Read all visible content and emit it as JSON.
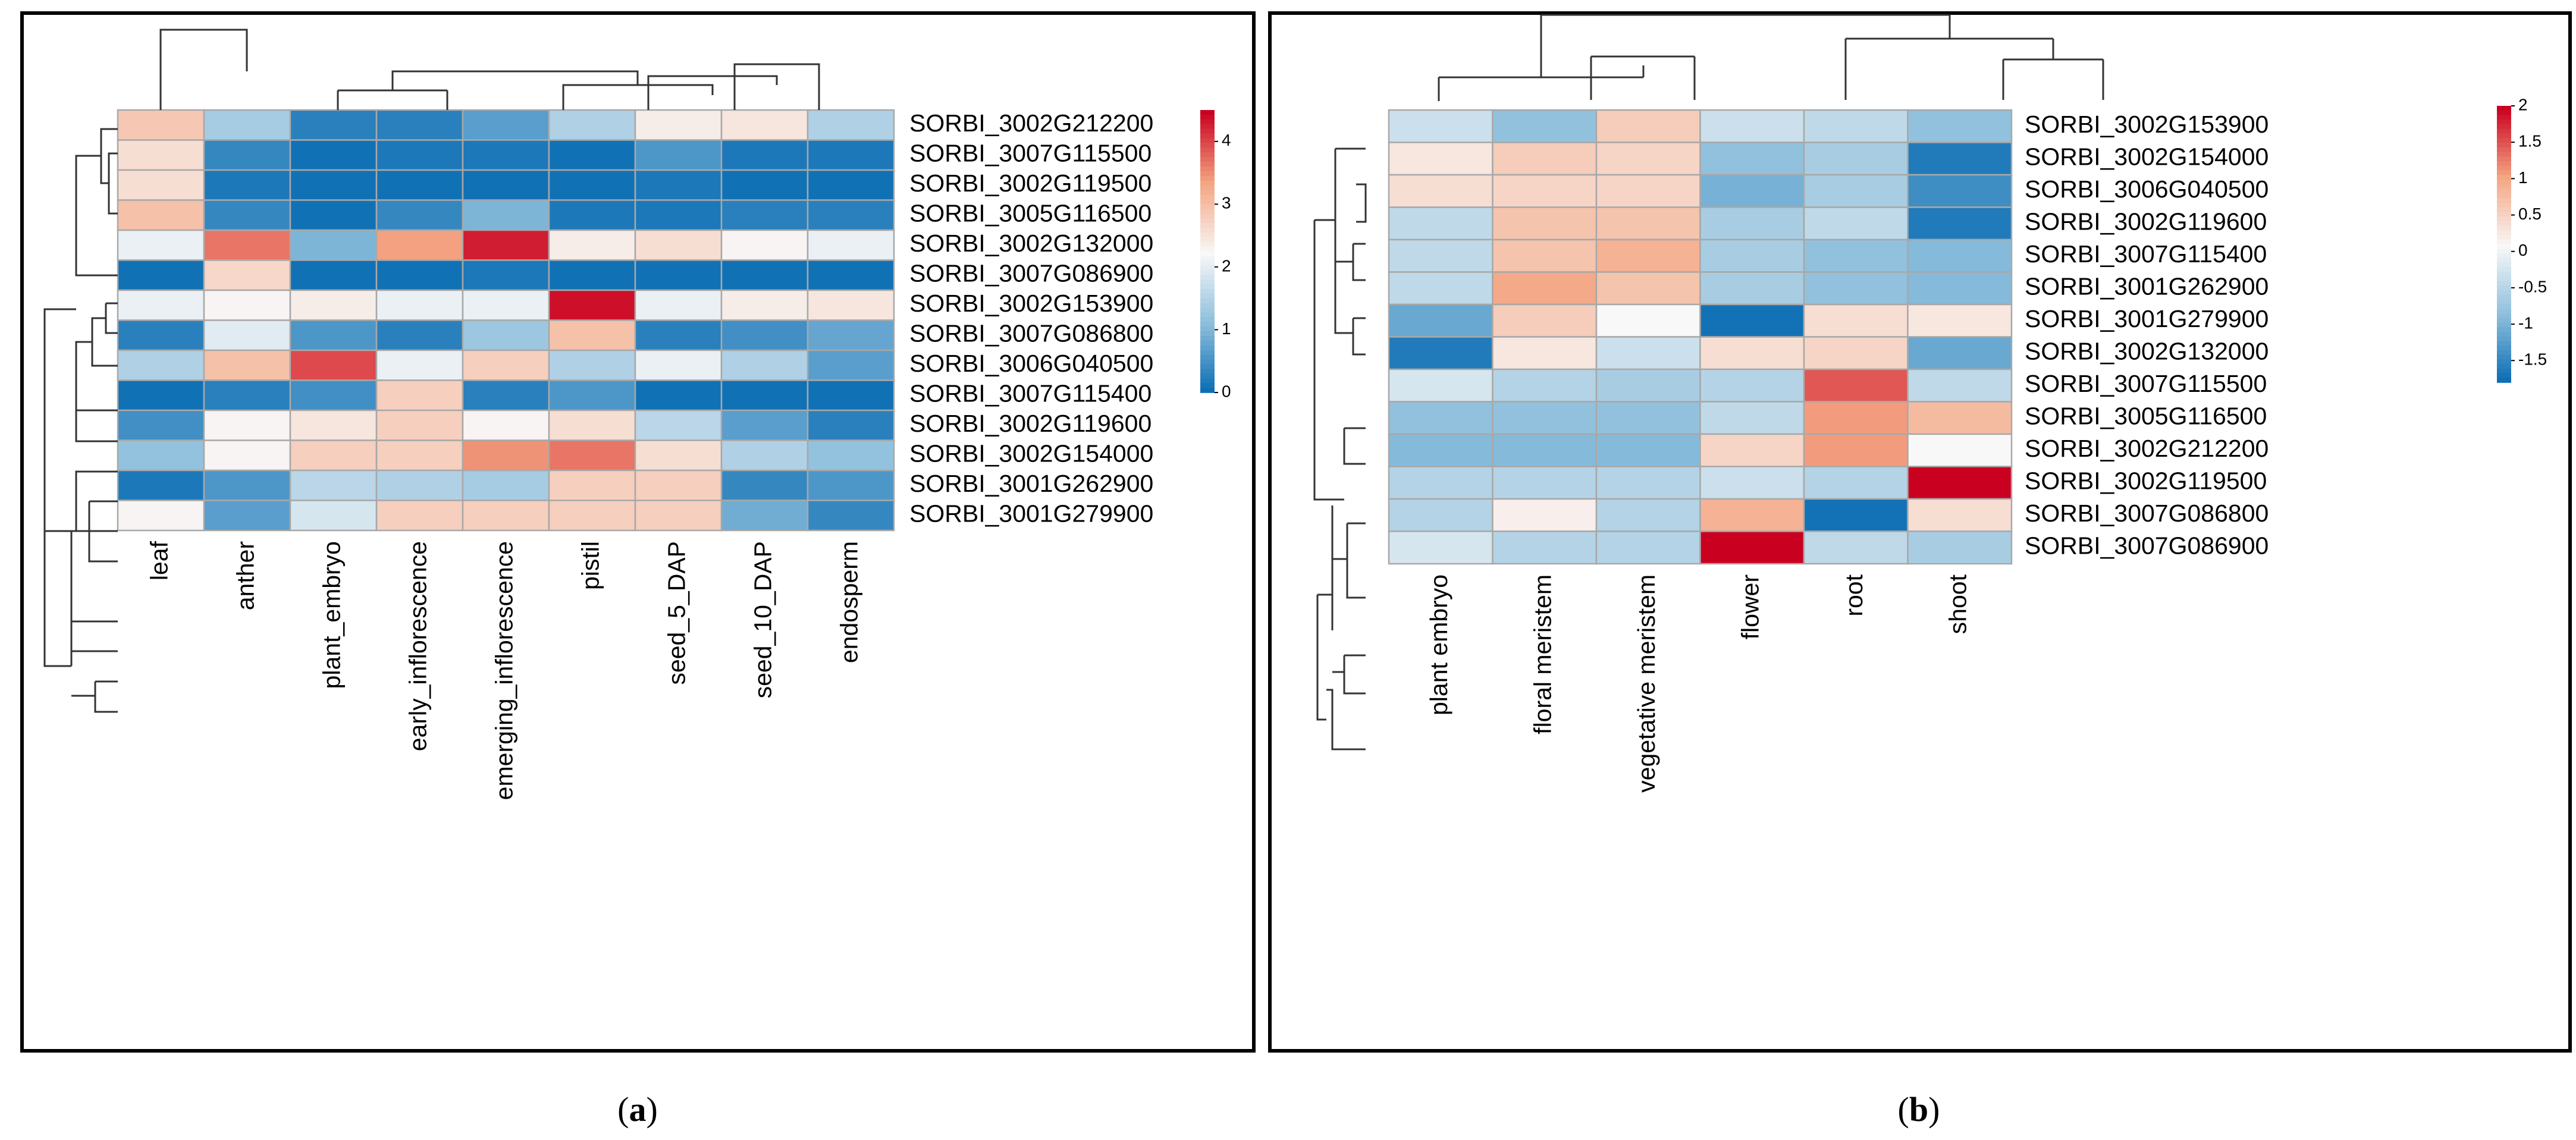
{
  "chart_data": [
    {
      "type": "heatmap",
      "panel": "a",
      "caption_open": "(",
      "caption_letter": "a",
      "caption_close": ")",
      "rows": [
        "SORBI_3002G212200",
        "SORBI_3007G115500",
        "SORBI_3002G119500",
        "SORBI_3005G116500",
        "SORBI_3002G132000",
        "SORBI_3007G086900",
        "SORBI_3002G153900",
        "SORBI_3007G086800",
        "SORBI_3006G040500",
        "SORBI_3007G115400",
        "SORBI_3002G119600",
        "SORBI_3002G154000",
        "SORBI_3001G262900",
        "SORBI_3001G279900"
      ],
      "columns": [
        "leaf",
        "anther",
        "plant_embryo",
        "early_inflorescence",
        "emerging_inflorescence",
        "pistil",
        "seed_5_DAP",
        "seed_10_DAP",
        "endosperm"
      ],
      "values": [
        [
          2.9,
          1.4,
          0.3,
          0.3,
          0.7,
          1.5,
          2.4,
          2.5,
          1.5
        ],
        [
          2.6,
          0.4,
          0.1,
          0.2,
          0.2,
          0.1,
          0.6,
          0.2,
          0.2
        ],
        [
          2.6,
          0.2,
          0.1,
          0.1,
          0.1,
          0.1,
          0.2,
          0.1,
          0.1
        ],
        [
          3.0,
          0.4,
          0.1,
          0.4,
          1.0,
          0.2,
          0.2,
          0.3,
          0.3
        ],
        [
          2.1,
          3.7,
          1.0,
          3.4,
          4.3,
          2.4,
          2.6,
          2.3,
          2.1
        ],
        [
          0.1,
          2.7,
          0.1,
          0.1,
          0.2,
          0.1,
          0.1,
          0.1,
          0.1
        ],
        [
          2.1,
          2.3,
          2.4,
          2.1,
          2.1,
          4.4,
          2.1,
          2.4,
          2.5
        ],
        [
          0.3,
          2.0,
          0.6,
          0.3,
          1.3,
          3.0,
          0.3,
          0.5,
          0.8
        ],
        [
          1.5,
          3.0,
          4.0,
          2.1,
          2.8,
          1.5,
          2.1,
          1.5,
          0.7
        ],
        [
          0.1,
          0.3,
          0.5,
          2.8,
          0.3,
          0.6,
          0.1,
          0.1,
          0.1
        ],
        [
          0.5,
          2.3,
          2.5,
          2.8,
          2.3,
          2.6,
          1.6,
          0.7,
          0.3
        ],
        [
          1.2,
          2.3,
          2.8,
          2.8,
          3.5,
          3.7,
          2.6,
          1.5,
          1.2
        ],
        [
          0.2,
          0.6,
          1.6,
          1.5,
          1.4,
          2.8,
          2.8,
          0.4,
          0.6
        ],
        [
          2.3,
          0.7,
          1.9,
          2.8,
          2.8,
          2.8,
          2.8,
          0.9,
          0.4
        ]
      ],
      "legend_ticks": [
        0,
        1,
        2,
        3,
        4
      ],
      "legend_range": [
        0,
        4.5
      ]
    },
    {
      "type": "heatmap",
      "panel": "b",
      "caption_open": "(",
      "caption_letter": "b",
      "caption_close": ")",
      "rows": [
        "SORBI_3002G153900",
        "SORBI_3002G154000",
        "SORBI_3006G040500",
        "SORBI_3002G119600",
        "SORBI_3007G115400",
        "SORBI_3001G262900",
        "SORBI_3001G279900",
        "SORBI_3002G132000",
        "SORBI_3007G115500",
        "SORBI_3005G116500",
        "SORBI_3002G212200",
        "SORBI_3002G119500",
        "SORBI_3007G086800",
        "SORBI_3007G086900"
      ],
      "columns": [
        "plant embryo",
        "floral meristem",
        "vegetative meristem",
        "flower",
        "root",
        "shoot"
      ],
      "values": [
        [
          -0.3,
          -0.8,
          0.6,
          -0.3,
          -0.4,
          -0.8
        ],
        [
          0.3,
          0.6,
          0.5,
          -0.8,
          -0.6,
          -1.6
        ],
        [
          0.4,
          0.5,
          0.5,
          -1.0,
          -0.6,
          -1.4
        ],
        [
          -0.4,
          0.7,
          0.7,
          -0.6,
          -0.4,
          -1.6
        ],
        [
          -0.4,
          0.7,
          0.9,
          -0.6,
          -0.8,
          -0.9
        ],
        [
          -0.4,
          1.0,
          0.7,
          -0.6,
          -0.8,
          -0.9
        ],
        [
          -1.1,
          0.6,
          0.1,
          -1.7,
          0.4,
          0.3
        ],
        [
          -1.6,
          0.3,
          -0.3,
          0.4,
          0.5,
          -1.1
        ],
        [
          -0.2,
          -0.5,
          -0.6,
          -0.5,
          1.5,
          -0.4
        ],
        [
          -0.8,
          -0.8,
          -0.8,
          -0.4,
          1.1,
          0.8
        ],
        [
          -0.9,
          -0.9,
          -0.9,
          0.5,
          1.1,
          0.1
        ],
        [
          -0.5,
          -0.5,
          -0.5,
          -0.3,
          -0.5,
          2.0
        ],
        [
          -0.5,
          0.2,
          -0.5,
          0.9,
          -1.7,
          0.4
        ],
        [
          -0.2,
          -0.5,
          -0.5,
          2.0,
          -0.4,
          -0.6
        ]
      ],
      "legend_ticks": [
        2,
        1.5,
        1,
        0.5,
        0,
        -0.5,
        -1,
        -1.5
      ],
      "legend_range": [
        -1.8,
        2.0
      ]
    }
  ]
}
